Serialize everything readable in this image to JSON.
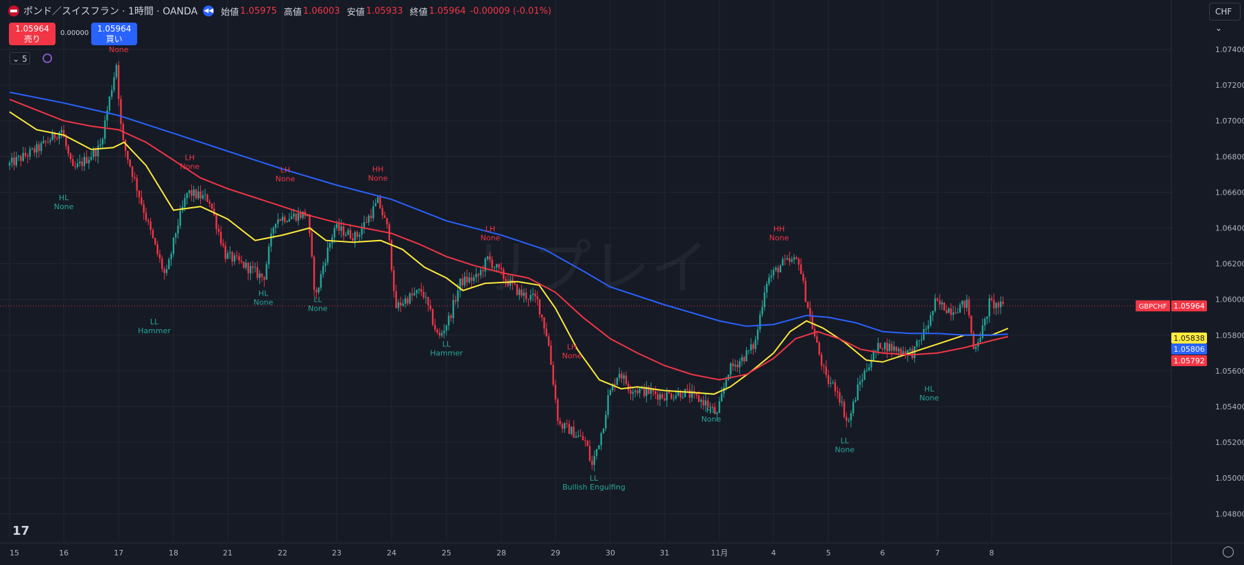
{
  "header": {
    "title": "ポンド／スイスフラン · 1時間 · OANDA",
    "open_label": "始値",
    "open_value": "1.05975",
    "high_label": "高値",
    "high_value": "1.06003",
    "low_label": "安値",
    "low_value": "1.05933",
    "close_label": "終値",
    "close_value": "1.05964",
    "change": "-0.00009 (-0.01%)"
  },
  "trade": {
    "sell_price": "1.05964",
    "sell_label": "売り",
    "spread": "0.00000",
    "buy_price": "1.05964",
    "buy_label": "買い"
  },
  "indicators": {
    "count": "5"
  },
  "currency_button": "CHF",
  "watermark": "リプレイ",
  "icons": [
    "flag-icon",
    "rewind-icon",
    "chevron-down-icon",
    "refresh-icon",
    "tradingview-logo-icon",
    "settings-gear-icon"
  ],
  "colors": {
    "background": "#161a25",
    "grid": "#222632",
    "up": "#26a69a",
    "down": "#f23645",
    "ma_fast": "#ffeb3b",
    "ma_mid": "#f23645",
    "ma_slow": "#2962ff",
    "structure_high": "#f23645",
    "structure_low": "#26a69a"
  },
  "chart_data": {
    "type": "candlestick",
    "symbol": "GBPCHF",
    "interval": "1時間",
    "ylim": [
      1.047,
      1.0755
    ],
    "y_ticks": [
      "1.07400",
      "1.07200",
      "1.07000",
      "1.06800",
      "1.06600",
      "1.06400",
      "1.06200",
      "1.06000",
      "1.05800",
      "1.05600",
      "1.05400",
      "1.05200",
      "1.05000",
      "1.04800"
    ],
    "x_ticks": [
      "15",
      "16",
      "17",
      "18",
      "21",
      "22",
      "23",
      "24",
      "25",
      "28",
      "29",
      "30",
      "31",
      "11月",
      "4",
      "5",
      "6",
      "7",
      "8"
    ],
    "current_price": 1.05964,
    "price_labels": [
      {
        "text": "GBPCHF",
        "color": "#f23645"
      },
      {
        "text": "1.05964",
        "color": "#f23645",
        "value": 1.05964
      },
      {
        "text": "1.05838",
        "color": "#ffeb3b",
        "value": 1.05838
      },
      {
        "text": "1.05806",
        "color": "#2962ff",
        "value": 1.05806
      },
      {
        "text": "1.05792",
        "color": "#f23645",
        "value": 1.05792
      }
    ],
    "path_points": [
      [
        0,
        1.0675
      ],
      [
        0.6,
        1.0685
      ],
      [
        1.0,
        1.0695
      ],
      [
        1.2,
        1.0672
      ],
      [
        1.7,
        1.0685
      ],
      [
        2.0,
        1.0732
      ],
      [
        2.1,
        1.069
      ],
      [
        2.4,
        1.066
      ],
      [
        2.7,
        1.063
      ],
      [
        2.9,
        1.0612
      ],
      [
        3.1,
        1.064
      ],
      [
        3.3,
        1.066
      ],
      [
        3.7,
        1.0656
      ],
      [
        4.0,
        1.0625
      ],
      [
        4.4,
        1.0618
      ],
      [
        4.7,
        1.0612
      ],
      [
        4.9,
        1.0645
      ],
      [
        5.5,
        1.0648
      ],
      [
        5.65,
        1.06
      ],
      [
        5.8,
        1.062
      ],
      [
        6.0,
        1.064
      ],
      [
        6.4,
        1.0635
      ],
      [
        6.8,
        1.0655
      ],
      [
        7.0,
        1.0636
      ],
      [
        7.1,
        1.0595
      ],
      [
        7.3,
        1.06
      ],
      [
        7.6,
        1.0605
      ],
      [
        7.9,
        1.0578
      ],
      [
        8.1,
        1.059
      ],
      [
        8.3,
        1.061
      ],
      [
        8.6,
        1.0612
      ],
      [
        8.8,
        1.0623
      ],
      [
        9.1,
        1.0612
      ],
      [
        9.4,
        1.0603
      ],
      [
        9.7,
        1.06
      ],
      [
        9.9,
        1.0578
      ],
      [
        10.1,
        1.053
      ],
      [
        10.3,
        1.0527
      ],
      [
        10.6,
        1.052
      ],
      [
        10.7,
        1.0506
      ],
      [
        10.9,
        1.0528
      ],
      [
        11.0,
        1.0545
      ],
      [
        11.2,
        1.056
      ],
      [
        11.4,
        1.055
      ],
      [
        11.8,
        1.0548
      ],
      [
        12.0,
        1.0546
      ],
      [
        12.4,
        1.0548
      ],
      [
        12.8,
        1.0542
      ],
      [
        13.0,
        1.0535
      ],
      [
        13.2,
        1.056
      ],
      [
        13.5,
        1.0568
      ],
      [
        13.7,
        1.0575
      ],
      [
        13.9,
        1.061
      ],
      [
        14.2,
        1.062
      ],
      [
        14.5,
        1.0622
      ],
      [
        14.6,
        1.0605
      ],
      [
        14.8,
        1.0578
      ],
      [
        15.0,
        1.0555
      ],
      [
        15.2,
        1.055
      ],
      [
        15.4,
        1.053
      ],
      [
        15.6,
        1.0552
      ],
      [
        15.8,
        1.0565
      ],
      [
        16.0,
        1.0575
      ],
      [
        16.3,
        1.0572
      ],
      [
        16.6,
        1.057
      ],
      [
        16.9,
        1.0588
      ],
      [
        17.0,
        1.0598
      ],
      [
        17.3,
        1.0594
      ],
      [
        17.6,
        1.0598
      ],
      [
        17.7,
        1.0572
      ],
      [
        17.9,
        1.0585
      ],
      [
        18.0,
        1.0598
      ],
      [
        18.2,
        1.0596
      ]
    ],
    "moving_averages": [
      {
        "color": "#ffeb3b",
        "points": [
          [
            0,
            1.0705
          ],
          [
            0.5,
            1.0695
          ],
          [
            1.0,
            1.0692
          ],
          [
            1.5,
            1.0684
          ],
          [
            1.9,
            1.0685
          ],
          [
            2.1,
            1.0688
          ],
          [
            2.5,
            1.0675
          ],
          [
            3.0,
            1.065
          ],
          [
            3.5,
            1.0652
          ],
          [
            4.0,
            1.0645
          ],
          [
            4.5,
            1.0633
          ],
          [
            5.0,
            1.0636
          ],
          [
            5.5,
            1.064
          ],
          [
            5.8,
            1.0633
          ],
          [
            6.3,
            1.0632
          ],
          [
            6.8,
            1.0633
          ],
          [
            7.2,
            1.0628
          ],
          [
            7.6,
            1.0618
          ],
          [
            8.0,
            1.0612
          ],
          [
            8.3,
            1.0605
          ],
          [
            8.7,
            1.0609
          ],
          [
            9.3,
            1.061
          ],
          [
            9.7,
            1.0608
          ],
          [
            10.0,
            1.0595
          ],
          [
            10.4,
            1.0572
          ],
          [
            10.8,
            1.0555
          ],
          [
            11.2,
            1.055
          ],
          [
            11.5,
            1.0551
          ],
          [
            12.0,
            1.0549
          ],
          [
            12.5,
            1.0548
          ],
          [
            12.9,
            1.0547
          ],
          [
            13.2,
            1.0551
          ],
          [
            13.6,
            1.056
          ],
          [
            14.0,
            1.057
          ],
          [
            14.3,
            1.0582
          ],
          [
            14.6,
            1.0588
          ],
          [
            14.9,
            1.0584
          ],
          [
            15.3,
            1.0576
          ],
          [
            15.7,
            1.0566
          ],
          [
            16.0,
            1.0565
          ],
          [
            16.5,
            1.057
          ],
          [
            17.0,
            1.0575
          ],
          [
            17.5,
            1.058
          ],
          [
            18.0,
            1.058
          ],
          [
            18.3,
            1.05838
          ]
        ]
      },
      {
        "color": "#f23645",
        "points": [
          [
            0,
            1.0712
          ],
          [
            0.5,
            1.0706
          ],
          [
            1.0,
            1.07
          ],
          [
            1.5,
            1.0697
          ],
          [
            2.0,
            1.0695
          ],
          [
            2.5,
            1.0688
          ],
          [
            3.0,
            1.0678
          ],
          [
            3.5,
            1.0668
          ],
          [
            4.0,
            1.0662
          ],
          [
            4.5,
            1.0657
          ],
          [
            5.0,
            1.0652
          ],
          [
            5.5,
            1.0647
          ],
          [
            6.0,
            1.0643
          ],
          [
            6.5,
            1.064
          ],
          [
            7.0,
            1.0637
          ],
          [
            7.5,
            1.0631
          ],
          [
            8.0,
            1.0624
          ],
          [
            8.5,
            1.0619
          ],
          [
            9.0,
            1.0615
          ],
          [
            9.5,
            1.0612
          ],
          [
            10.0,
            1.0604
          ],
          [
            10.5,
            1.059
          ],
          [
            11.0,
            1.0578
          ],
          [
            11.5,
            1.057
          ],
          [
            12.0,
            1.0563
          ],
          [
            12.5,
            1.0558
          ],
          [
            13.0,
            1.0555
          ],
          [
            13.5,
            1.0558
          ],
          [
            14.0,
            1.0567
          ],
          [
            14.4,
            1.0578
          ],
          [
            14.8,
            1.0582
          ],
          [
            15.2,
            1.0578
          ],
          [
            15.6,
            1.0572
          ],
          [
            16.0,
            1.057
          ],
          [
            16.5,
            1.0569
          ],
          [
            17.0,
            1.057
          ],
          [
            17.5,
            1.0573
          ],
          [
            18.0,
            1.0577
          ],
          [
            18.3,
            1.05792
          ]
        ]
      },
      {
        "color": "#2962ff",
        "points": [
          [
            0,
            1.0716
          ],
          [
            1.0,
            1.071
          ],
          [
            2.0,
            1.0703
          ],
          [
            3.0,
            1.0693
          ],
          [
            4.0,
            1.0683
          ],
          [
            5.0,
            1.0673
          ],
          [
            6.0,
            1.0664
          ],
          [
            7.0,
            1.0656
          ],
          [
            8.0,
            1.0644
          ],
          [
            9.0,
            1.0636
          ],
          [
            9.8,
            1.0628
          ],
          [
            10.5,
            1.0616
          ],
          [
            11.0,
            1.0607
          ],
          [
            12.0,
            1.0597
          ],
          [
            13.0,
            1.0588
          ],
          [
            13.5,
            1.0585
          ],
          [
            14.0,
            1.0586
          ],
          [
            14.6,
            1.0591
          ],
          [
            15.0,
            1.059
          ],
          [
            15.5,
            1.0587
          ],
          [
            16.0,
            1.0582
          ],
          [
            16.5,
            1.0581
          ],
          [
            17.0,
            1.0581
          ],
          [
            17.5,
            1.058
          ],
          [
            18.0,
            1.058
          ],
          [
            18.3,
            1.05806
          ]
        ]
      }
    ],
    "annotations": [
      {
        "x": 2.0,
        "y": 1.07385,
        "kind": "high",
        "lines": [
          "None"
        ]
      },
      {
        "x": 1.0,
        "y": 1.06555,
        "kind": "low",
        "lines": [
          "HL",
          "None"
        ]
      },
      {
        "x": 3.3,
        "y": 1.0678,
        "kind": "high",
        "lines": [
          "LH",
          "None"
        ]
      },
      {
        "x": 5.05,
        "y": 1.0671,
        "kind": "high",
        "lines": [
          "LH",
          "None"
        ]
      },
      {
        "x": 6.75,
        "y": 1.06715,
        "kind": "high",
        "lines": [
          "HH",
          "None"
        ]
      },
      {
        "x": 8.8,
        "y": 1.0638,
        "kind": "high",
        "lines": [
          "LH",
          "None"
        ]
      },
      {
        "x": 10.3,
        "y": 1.0572,
        "kind": "high",
        "lines": [
          "LH",
          "None"
        ]
      },
      {
        "x": 14.1,
        "y": 1.0638,
        "kind": "high",
        "lines": [
          "HH",
          "None"
        ]
      },
      {
        "x": 2.65,
        "y": 1.0586,
        "kind": "low",
        "lines": [
          "LL",
          "Hammer"
        ]
      },
      {
        "x": 4.65,
        "y": 1.0602,
        "kind": "low",
        "lines": [
          "HL",
          "None"
        ]
      },
      {
        "x": 5.65,
        "y": 1.05985,
        "kind": "low",
        "lines": [
          "LL",
          "None"
        ]
      },
      {
        "x": 8.0,
        "y": 1.05735,
        "kind": "low",
        "lines": [
          "LL",
          "Hammer"
        ]
      },
      {
        "x": 10.7,
        "y": 1.04985,
        "kind": "low",
        "lines": [
          "LL",
          "Bullish Engulfing"
        ]
      },
      {
        "x": 12.85,
        "y": 1.05365,
        "kind": "low",
        "lines": [
          "HL",
          "None"
        ]
      },
      {
        "x": 15.3,
        "y": 1.05195,
        "kind": "low",
        "lines": [
          "LL",
          "None"
        ]
      },
      {
        "x": 16.85,
        "y": 1.05485,
        "kind": "low",
        "lines": [
          "HL",
          "None"
        ]
      }
    ]
  }
}
